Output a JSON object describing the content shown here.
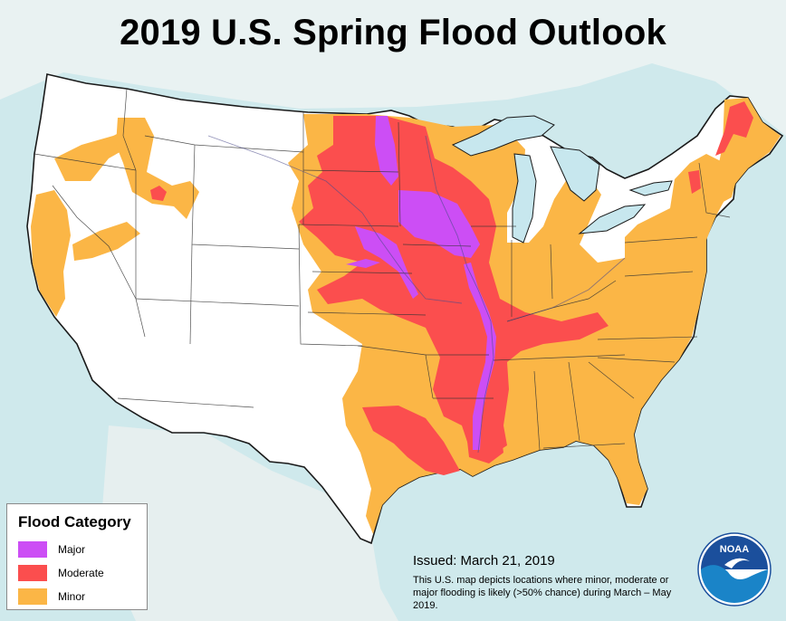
{
  "title": "2019 U.S. Spring Flood Outlook",
  "legend": {
    "title": "Flood Category",
    "items": [
      {
        "label": "Major",
        "color": "#cc4ef5"
      },
      {
        "label": "Moderate",
        "color": "#fb4e4e"
      },
      {
        "label": "Minor",
        "color": "#fbb646"
      }
    ]
  },
  "issued": "Issued:  March 21, 2019",
  "description": "This U.S. map depicts locations where minor, moderate or major flooding is likely (>50% chance) during March – May 2019.",
  "logo": {
    "text": "NOAA",
    "icon": "noaa-logo-icon"
  },
  "colors": {
    "water": "#cfe9ec",
    "land": "#ffffff",
    "great_lakes": "#c7e7ee",
    "border": "#1a1a1a"
  }
}
